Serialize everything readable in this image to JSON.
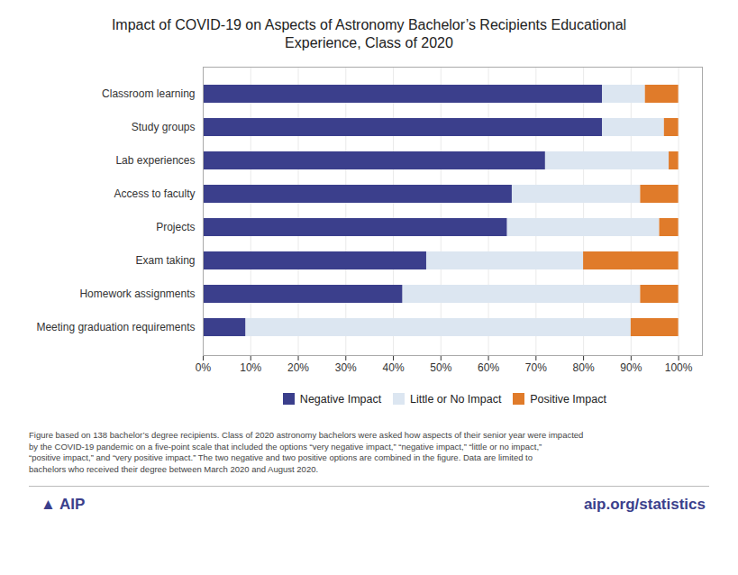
{
  "chart_data": {
    "type": "bar",
    "orientation": "horizontal",
    "stacked": true,
    "title": "Impact of COVID-19 on Aspects of Astronomy Bachelor’s Recipients Educational\nExperience, Class of 2020",
    "categories": [
      "Meeting graduation requirements",
      "Homework assignments",
      "Exam taking",
      "Projects",
      "Access to faculty",
      "Lab experiences",
      "Study groups",
      "Classroom learning"
    ],
    "series": [
      {
        "name": "Negative Impact",
        "color": "#3b3f8c",
        "values": [
          9,
          42,
          47,
          64,
          65,
          72,
          84,
          84
        ]
      },
      {
        "name": "Little or No Impact",
        "color": "#dce6f1",
        "values": [
          81,
          50,
          33,
          32,
          27,
          26,
          13,
          9
        ]
      },
      {
        "name": "Positive Impact",
        "color": "#e07b2a",
        "values": [
          10,
          8,
          20,
          4,
          8,
          2,
          3,
          7
        ]
      }
    ],
    "xlim": [
      0,
      105
    ],
    "xticks": [
      {
        "value": 0,
        "label": "0%"
      },
      {
        "value": 10,
        "label": "10%"
      },
      {
        "value": 20,
        "label": "20%"
      },
      {
        "value": 30,
        "label": "30%"
      },
      {
        "value": 40,
        "label": "40%"
      },
      {
        "value": 50,
        "label": "50%"
      },
      {
        "value": 60,
        "label": "60%"
      },
      {
        "value": 70,
        "label": "70%"
      },
      {
        "value": 80,
        "label": "80%"
      },
      {
        "value": 90,
        "label": "90%"
      },
      {
        "value": 100,
        "label": "100%"
      }
    ],
    "grid": true,
    "legend": "bottom",
    "annotations": [
      "Figure based on 138 bachelor’s degree recipients. Class of 2020 astronomy bachelors were asked how aspects of their senior year were impacted\nby the COVID-19 pandemic on a five-point scale that included the options “very negative impact,” “negative impact,” “little or no impact,”\n“positive impact,” and “very positive impact.” The two negative and two positive options are combined in the figure. Data are limited to\nbachelors who received their degree between March 2020 and August 2020.",
      "▲ AIP",
      "aip.org/statistics"
    ]
  }
}
